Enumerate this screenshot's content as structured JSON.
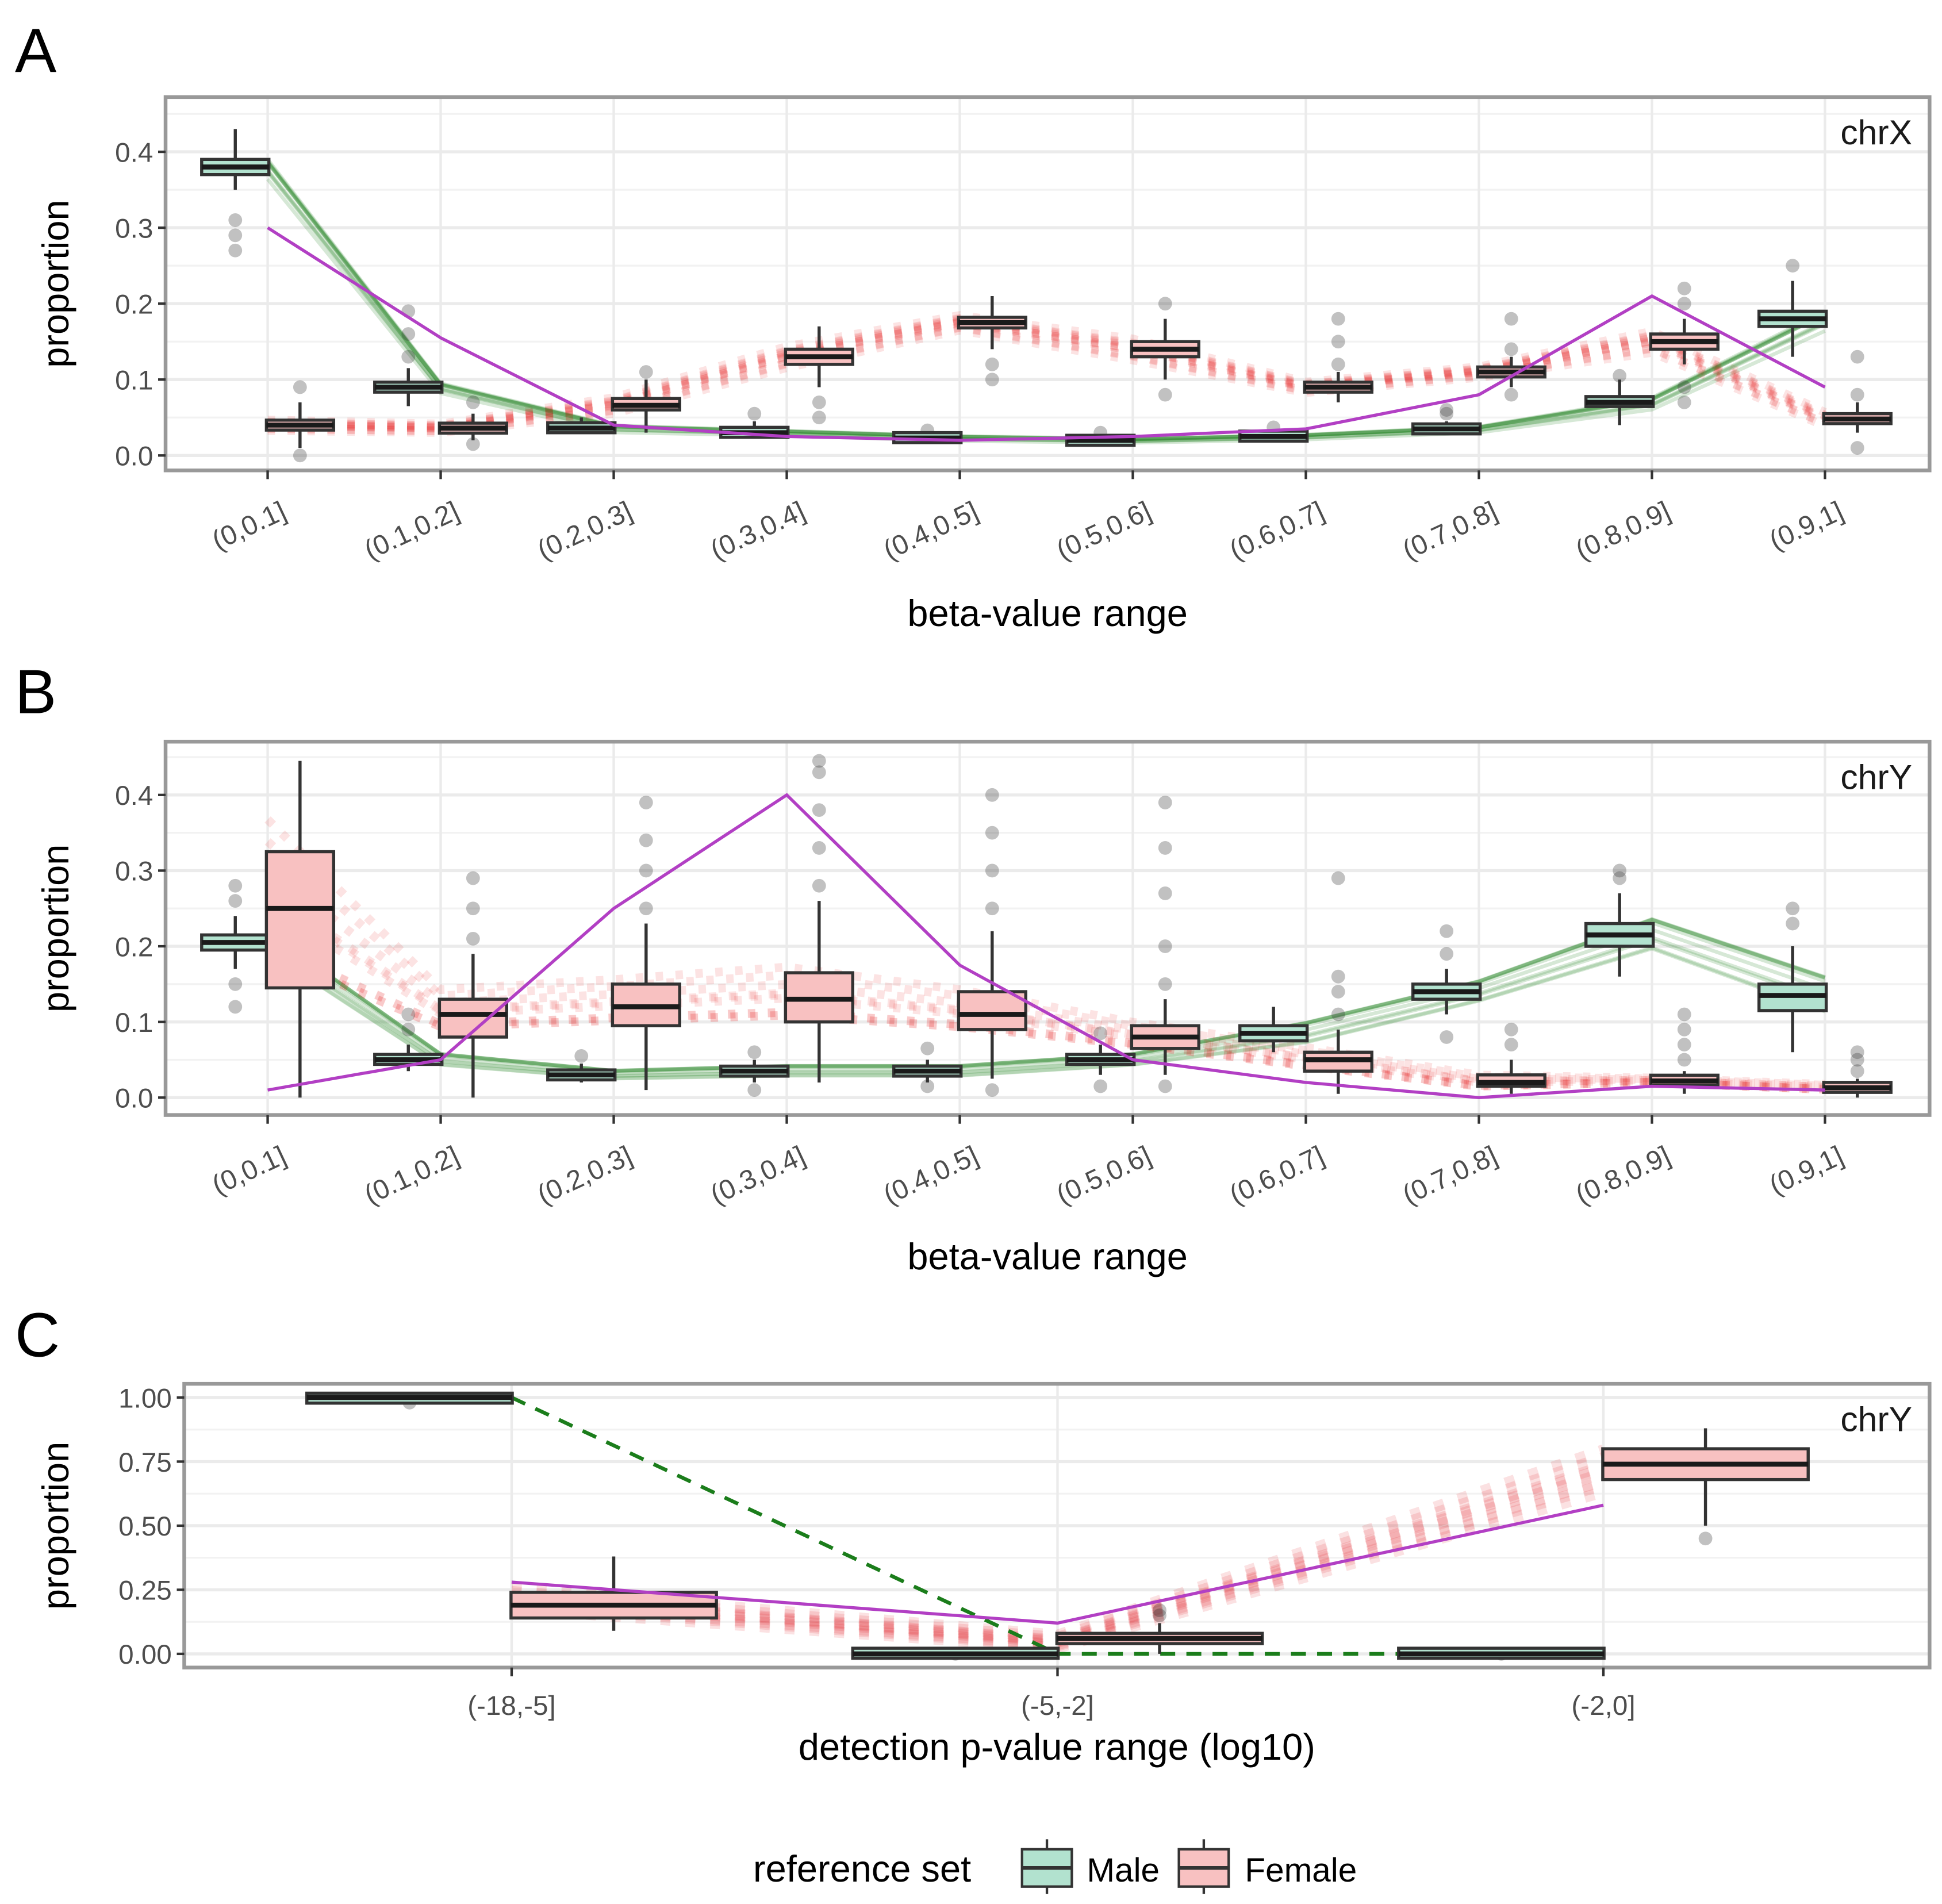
{
  "colors": {
    "male_fill": "#b2e2cf",
    "female_fill": "#f8c1c1",
    "male_line": "#1b7d1b",
    "female_line": "#e31a1c",
    "purple": "#b23fc4",
    "box_edge": "#333333"
  },
  "legend": {
    "title": "reference set",
    "entries": [
      "Male",
      "Female"
    ]
  },
  "chart_data": [
    {
      "panel": "A",
      "type": "boxplot",
      "facet": "chrX",
      "xlabel": "beta-value range",
      "ylabel": "proportion",
      "categories": [
        "(0,0.1]",
        "(0.1,0.2]",
        "(0.2,0.3]",
        "(0.3,0.4]",
        "(0.4,0.5]",
        "(0.5,0.6]",
        "(0.6,0.7]",
        "(0.7,0.8]",
        "(0.8,0.9]",
        "(0.9,1]"
      ],
      "yticks": [
        "0.0",
        "0.1",
        "0.2",
        "0.3",
        "0.4"
      ],
      "ytick_values": [
        0,
        0.1,
        0.2,
        0.3,
        0.4
      ],
      "ylim": [
        -0.01,
        0.46
      ],
      "series": [
        {
          "name": "Male",
          "boxes": [
            {
              "low": 0.35,
              "q1": 0.37,
              "median": 0.38,
              "q3": 0.39,
              "high": 0.43,
              "outliers": [
                0.27,
                0.29,
                0.31
              ]
            },
            {
              "low": 0.065,
              "q1": 0.085,
              "median": 0.09,
              "q3": 0.095,
              "high": 0.115,
              "outliers": [
                0.13,
                0.16,
                0.19
              ]
            },
            {
              "low": 0.03,
              "q1": 0.033,
              "median": 0.036,
              "q3": 0.04,
              "high": 0.05,
              "outliers": []
            },
            {
              "low": 0.025,
              "q1": 0.028,
              "median": 0.03,
              "q3": 0.033,
              "high": 0.045,
              "outliers": [
                0.055
              ]
            },
            {
              "low": 0.018,
              "q1": 0.021,
              "median": 0.023,
              "q3": 0.026,
              "high": 0.03,
              "outliers": [
                0.033
              ]
            },
            {
              "low": 0.015,
              "q1": 0.018,
              "median": 0.02,
              "q3": 0.022,
              "high": 0.027,
              "outliers": [
                0.03
              ]
            },
            {
              "low": 0.02,
              "q1": 0.023,
              "median": 0.025,
              "q3": 0.028,
              "high": 0.033,
              "outliers": [
                0.037
              ]
            },
            {
              "low": 0.028,
              "q1": 0.032,
              "median": 0.035,
              "q3": 0.038,
              "high": 0.045,
              "outliers": [
                0.055,
                0.06
              ]
            },
            {
              "low": 0.04,
              "q1": 0.065,
              "median": 0.07,
              "q3": 0.077,
              "high": 0.1,
              "outliers": [
                0.105
              ]
            },
            {
              "low": 0.13,
              "q1": 0.17,
              "median": 0.18,
              "q3": 0.19,
              "high": 0.23,
              "outliers": [
                0.25
              ]
            }
          ]
        },
        {
          "name": "Female",
          "boxes": [
            {
              "low": 0.01,
              "q1": 0.035,
              "median": 0.04,
              "q3": 0.045,
              "high": 0.07,
              "outliers": [
                0.0,
                0.09
              ]
            },
            {
              "low": 0.02,
              "q1": 0.032,
              "median": 0.036,
              "q3": 0.04,
              "high": 0.055,
              "outliers": [
                0.015,
                0.07
              ]
            },
            {
              "low": 0.03,
              "q1": 0.06,
              "median": 0.066,
              "q3": 0.075,
              "high": 0.1,
              "outliers": [
                0.11
              ]
            },
            {
              "low": 0.09,
              "q1": 0.12,
              "median": 0.13,
              "q3": 0.14,
              "high": 0.17,
              "outliers": [
                0.05,
                0.07
              ]
            },
            {
              "low": 0.14,
              "q1": 0.168,
              "median": 0.175,
              "q3": 0.182,
              "high": 0.21,
              "outliers": [
                0.1,
                0.12
              ]
            },
            {
              "low": 0.1,
              "q1": 0.13,
              "median": 0.14,
              "q3": 0.15,
              "high": 0.18,
              "outliers": [
                0.08,
                0.2
              ]
            },
            {
              "low": 0.07,
              "q1": 0.085,
              "median": 0.09,
              "q3": 0.095,
              "high": 0.11,
              "outliers": [
                0.12,
                0.15,
                0.18
              ]
            },
            {
              "low": 0.09,
              "q1": 0.105,
              "median": 0.11,
              "q3": 0.115,
              "high": 0.13,
              "outliers": [
                0.08,
                0.14,
                0.18
              ]
            },
            {
              "low": 0.12,
              "q1": 0.14,
              "median": 0.15,
              "q3": 0.16,
              "high": 0.18,
              "outliers": [
                0.07,
                0.09,
                0.2,
                0.22
              ]
            },
            {
              "low": 0.03,
              "q1": 0.042,
              "median": 0.048,
              "q3": 0.055,
              "high": 0.07,
              "outliers": [
                0.01,
                0.08,
                0.13
              ]
            }
          ]
        }
      ],
      "sample_line": [
        0.3,
        0.155,
        0.04,
        0.025,
        0.02,
        0.025,
        0.035,
        0.08,
        0.21,
        0.09
      ]
    },
    {
      "panel": "B",
      "type": "boxplot",
      "facet": "chrY",
      "xlabel": "beta-value range",
      "ylabel": "proportion",
      "categories": [
        "(0,0.1]",
        "(0.1,0.2]",
        "(0.2,0.3]",
        "(0.3,0.4]",
        "(0.4,0.5]",
        "(0.5,0.6]",
        "(0.6,0.7]",
        "(0.7,0.8]",
        "(0.8,0.9]",
        "(0.9,1]"
      ],
      "yticks": [
        "0.0",
        "0.1",
        "0.2",
        "0.3",
        "0.4"
      ],
      "ytick_values": [
        0,
        0.1,
        0.2,
        0.3,
        0.4
      ],
      "ylim": [
        -0.01,
        0.46
      ],
      "series": [
        {
          "name": "Male",
          "boxes": [
            {
              "low": 0.17,
              "q1": 0.195,
              "median": 0.205,
              "q3": 0.215,
              "high": 0.24,
              "outliers": [
                0.12,
                0.15,
                0.26,
                0.28
              ]
            },
            {
              "low": 0.035,
              "q1": 0.045,
              "median": 0.05,
              "q3": 0.056,
              "high": 0.07,
              "outliers": [
                0.09,
                0.11
              ]
            },
            {
              "low": 0.02,
              "q1": 0.026,
              "median": 0.03,
              "q3": 0.034,
              "high": 0.045,
              "outliers": [
                0.055
              ]
            },
            {
              "low": 0.02,
              "q1": 0.03,
              "median": 0.035,
              "q3": 0.04,
              "high": 0.05,
              "outliers": [
                0.01,
                0.06
              ]
            },
            {
              "low": 0.02,
              "q1": 0.03,
              "median": 0.035,
              "q3": 0.04,
              "high": 0.05,
              "outliers": [
                0.015,
                0.065
              ]
            },
            {
              "low": 0.03,
              "q1": 0.045,
              "median": 0.05,
              "q3": 0.056,
              "high": 0.07,
              "outliers": [
                0.015,
                0.085
              ]
            },
            {
              "low": 0.06,
              "q1": 0.075,
              "median": 0.085,
              "q3": 0.095,
              "high": 0.12,
              "outliers": []
            },
            {
              "low": 0.11,
              "q1": 0.13,
              "median": 0.14,
              "q3": 0.15,
              "high": 0.17,
              "outliers": [
                0.08,
                0.19,
                0.22
              ]
            },
            {
              "low": 0.16,
              "q1": 0.2,
              "median": 0.215,
              "q3": 0.23,
              "high": 0.27,
              "outliers": [
                0.29,
                0.3
              ]
            },
            {
              "low": 0.06,
              "q1": 0.115,
              "median": 0.135,
              "q3": 0.15,
              "high": 0.2,
              "outliers": [
                0.23,
                0.25
              ]
            }
          ]
        },
        {
          "name": "Female",
          "boxes": [
            {
              "low": 0.0,
              "q1": 0.145,
              "median": 0.25,
              "q3": 0.325,
              "high": 0.445,
              "outliers": []
            },
            {
              "low": 0.0,
              "q1": 0.08,
              "median": 0.11,
              "q3": 0.13,
              "high": 0.19,
              "outliers": [
                0.21,
                0.25,
                0.29
              ]
            },
            {
              "low": 0.01,
              "q1": 0.095,
              "median": 0.12,
              "q3": 0.15,
              "high": 0.23,
              "outliers": [
                0.25,
                0.3,
                0.34,
                0.39
              ]
            },
            {
              "low": 0.02,
              "q1": 0.1,
              "median": 0.13,
              "q3": 0.165,
              "high": 0.26,
              "outliers": [
                0.28,
                0.33,
                0.38,
                0.43,
                0.445
              ]
            },
            {
              "low": 0.025,
              "q1": 0.09,
              "median": 0.11,
              "q3": 0.14,
              "high": 0.22,
              "outliers": [
                0.01,
                0.25,
                0.3,
                0.35,
                0.4
              ]
            },
            {
              "low": 0.03,
              "q1": 0.065,
              "median": 0.08,
              "q3": 0.095,
              "high": 0.13,
              "outliers": [
                0.015,
                0.15,
                0.2,
                0.27,
                0.33,
                0.39
              ]
            },
            {
              "low": 0.005,
              "q1": 0.035,
              "median": 0.05,
              "q3": 0.06,
              "high": 0.09,
              "outliers": [
                0.11,
                0.14,
                0.16,
                0.29
              ]
            },
            {
              "low": 0.005,
              "q1": 0.015,
              "median": 0.02,
              "q3": 0.03,
              "high": 0.05,
              "outliers": [
                0.07,
                0.09
              ]
            },
            {
              "low": 0.005,
              "q1": 0.02,
              "median": 0.022,
              "q3": 0.026,
              "high": 0.035,
              "outliers": [
                0.05,
                0.07,
                0.09,
                0.11
              ]
            },
            {
              "low": 0.0,
              "q1": 0.01,
              "median": 0.013,
              "q3": 0.017,
              "high": 0.025,
              "outliers": [
                0.035,
                0.05,
                0.06
              ]
            }
          ]
        }
      ],
      "sample_line": [
        0.01,
        0.05,
        0.25,
        0.4,
        0.175,
        0.05,
        0.02,
        0.0,
        0.015,
        0.01
      ]
    },
    {
      "panel": "C",
      "type": "boxplot",
      "facet": "chrY",
      "xlabel": "detection p-value range (log10)",
      "ylabel": "proportion",
      "categories": [
        "(-18,-5]",
        "(-5,-2]",
        "(-2,0]"
      ],
      "yticks": [
        "0.00",
        "0.25",
        "0.50",
        "0.75",
        "1.00"
      ],
      "ytick_values": [
        0,
        0.25,
        0.5,
        0.75,
        1.0
      ],
      "ylim": [
        -0.03,
        1.05
      ],
      "series": [
        {
          "name": "Male",
          "boxes": [
            {
              "low": 0.99,
              "q1": 0.995,
              "median": 1.0,
              "q3": 1.0,
              "high": 1.0,
              "outliers": [
                0.98
              ]
            },
            {
              "low": 0.0,
              "q1": 0.0,
              "median": 0.0,
              "q3": 0.005,
              "high": 0.01,
              "outliers": [
                0.0
              ]
            },
            {
              "low": 0.0,
              "q1": 0.0,
              "median": 0.0,
              "q3": 0.005,
              "high": 0.01,
              "outliers": [
                0.0
              ]
            }
          ]
        },
        {
          "name": "Female",
          "boxes": [
            {
              "low": 0.09,
              "q1": 0.14,
              "median": 0.19,
              "q3": 0.24,
              "high": 0.38,
              "outliers": []
            },
            {
              "low": 0.0,
              "q1": 0.04,
              "median": 0.06,
              "q3": 0.08,
              "high": 0.12,
              "outliers": [
                0.15,
                0.17
              ]
            },
            {
              "low": 0.5,
              "q1": 0.68,
              "median": 0.74,
              "q3": 0.8,
              "high": 0.88,
              "outliers": [
                0.45
              ]
            }
          ]
        }
      ],
      "sample_line": [
        0.28,
        0.12,
        0.58
      ],
      "male_reference_line": [
        1.0,
        0.0,
        0.0
      ]
    }
  ]
}
